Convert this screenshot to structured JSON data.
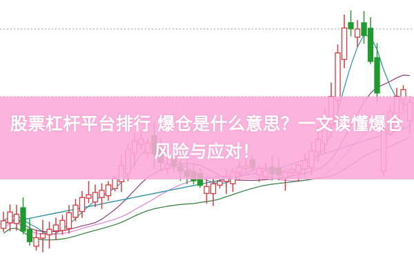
{
  "article": {
    "title": "股票杠杆平台排行 爆仓是什么意思？一文读懂爆仓风险与应对！"
  },
  "chart": {
    "type": "candlestick",
    "axes_visible": false,
    "gridlines": "dotted horizontal",
    "colors": {
      "up_candle": "#d9363e",
      "down_candle": "#1f9a2e",
      "ma_short": "#2a8fa0",
      "ma_mid": "#8a3a7a",
      "ma_long": "#e07fd2",
      "ma_longer": "#2d7a3c",
      "banner": "#fca8d8"
    }
  }
}
